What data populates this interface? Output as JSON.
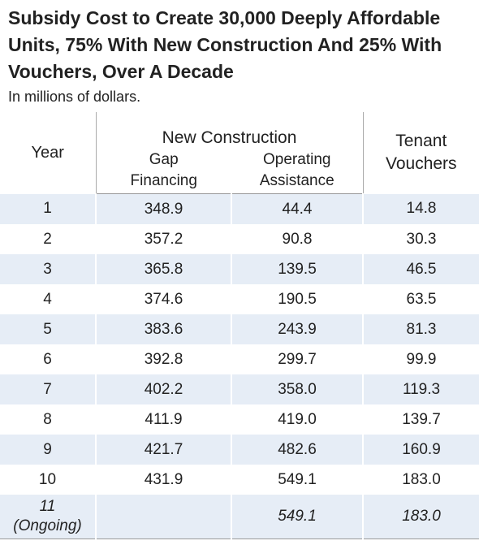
{
  "header": {
    "title": "Subsidy Cost to Create 30,000 Deeply Affordable Units, 75% With New Construction And 25% With Vouchers, Over A Decade",
    "subtitle": "In millions of dollars."
  },
  "table": {
    "group_header": "New Construction",
    "columns": [
      "Year",
      "Gap Financing",
      "Operating Assistance",
      "Tenant Vouchers"
    ],
    "rows": [
      [
        "1",
        "348.9",
        "44.4",
        "14.8"
      ],
      [
        "2",
        "357.2",
        "90.8",
        "30.3"
      ],
      [
        "3",
        "365.8",
        "139.5",
        "46.5"
      ],
      [
        "4",
        "374.6",
        "190.5",
        "63.5"
      ],
      [
        "5",
        "383.6",
        "243.9",
        "81.3"
      ],
      [
        "6",
        "392.8",
        "299.7",
        "99.9"
      ],
      [
        "7",
        "402.2",
        "358.0",
        "119.3"
      ],
      [
        "8",
        "411.9",
        "419.0",
        "139.7"
      ],
      [
        "9",
        "421.7",
        "482.6",
        "160.9"
      ],
      [
        "10",
        "431.9",
        "549.1",
        "183.0"
      ],
      [
        "11 (Ongoing)",
        null,
        "549.1",
        "183.0"
      ]
    ]
  }
}
